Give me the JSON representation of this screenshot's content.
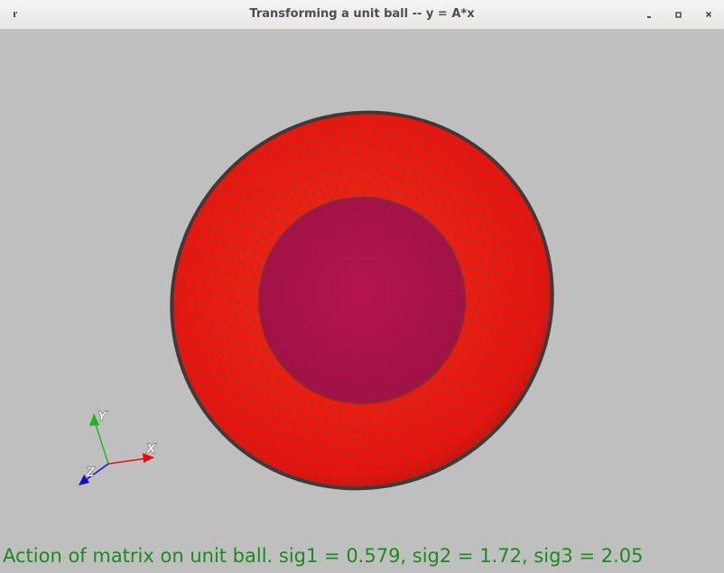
{
  "window": {
    "title": "Transforming a unit ball -- y = A*x",
    "buttons": {
      "menu": "window-menu-icon",
      "minimize": "minimize-icon",
      "maximize": "maximize-icon",
      "close": "close-icon"
    }
  },
  "scene": {
    "background_color": "#bfbfbf",
    "ellipsoid_color": "#ff1a0d",
    "sphere_color": "#b3124a",
    "mesh_color": "#5a4a4a",
    "axes": {
      "x_label": "X",
      "y_label": "Y",
      "z_label": "Z",
      "x_color": "#e01010",
      "y_color": "#18b818",
      "z_color": "#1010c8"
    }
  },
  "caption": {
    "text": "Action of matrix on unit ball.  sig1 = 0.579, sig2 = 1.72, sig3 = 2.05",
    "color": "#1a8c1a"
  }
}
